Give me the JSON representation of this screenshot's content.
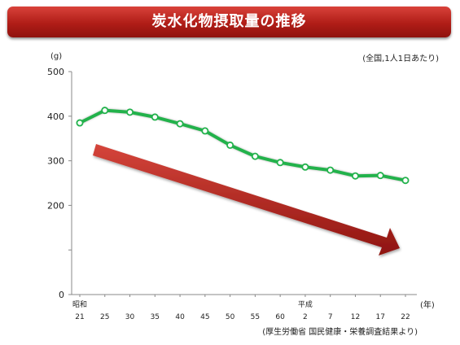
{
  "title": "炭水化物摂取量の推移",
  "basis_note": "(全国,1人1日あたり)",
  "source_note": "(厚生労働省  国民健康・栄養調査結果より)",
  "chart_data": {
    "type": "line",
    "ylabel": "(g)",
    "xlabel": "(年)",
    "era_labels": [
      {
        "text": "昭和",
        "at": "21"
      },
      {
        "text": "平成",
        "at": "2"
      }
    ],
    "categories": [
      "21",
      "25",
      "30",
      "35",
      "40",
      "45",
      "50",
      "55",
      "60",
      "2",
      "7",
      "12",
      "17",
      "22"
    ],
    "series": [
      {
        "values": [
          385,
          413,
          409,
          398,
          383,
          367,
          335,
          310,
          296,
          286,
          279,
          266,
          267,
          256
        ]
      }
    ],
    "ylim": [
      0,
      500
    ],
    "yticks": [
      0,
      100,
      200,
      300,
      400,
      500
    ],
    "yticklabels": [
      "0",
      "",
      "200",
      "300",
      "400",
      "500"
    ],
    "grid": false,
    "colors": {
      "line": "#22b24c",
      "marker_fill": "#ffffff",
      "trend_arrow": "#b0201b",
      "banner": "#b01d17"
    }
  }
}
